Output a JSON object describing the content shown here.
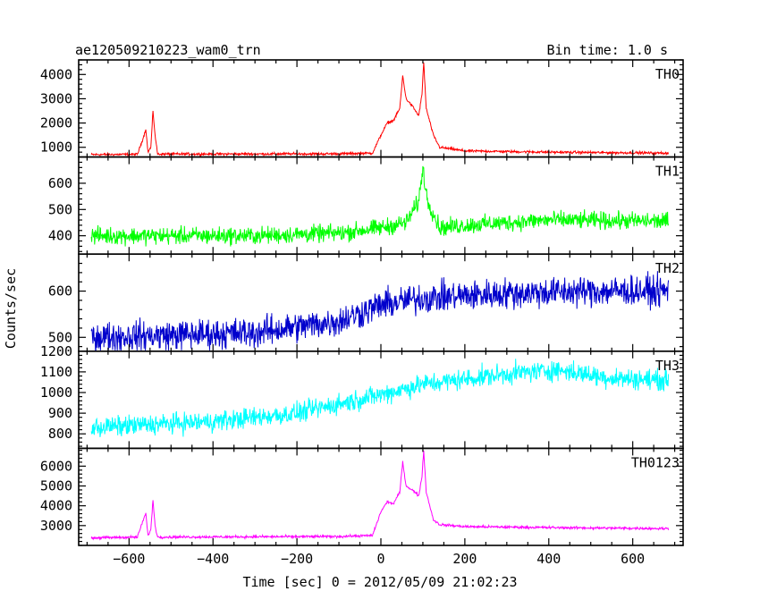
{
  "header": {
    "left": "ae120509210223_wam0_trn",
    "right": "Bin time: 1.0 s"
  },
  "chart_data": {
    "type": "line",
    "title": "ae120509210223_wam0_trn",
    "xlabel": "Time [sec] 0 = 2012/05/09 21:02:23",
    "ylabel": "Counts/sec",
    "xlim": [
      -720,
      720
    ],
    "x_ticks": [
      -600,
      -400,
      -200,
      0,
      200,
      400,
      600
    ],
    "x_tick_labels": [
      "−600",
      "−400",
      "−200",
      "0",
      "200",
      "400",
      "600"
    ],
    "x_range": [
      -690,
      685
    ],
    "panels": [
      {
        "name": "TH0",
        "color": "#ff0000",
        "ylim": [
          600,
          4600
        ],
        "y_ticks": [
          1000,
          2000,
          3000,
          4000
        ],
        "y_tick_labels": [
          "1000",
          "2000",
          "3000",
          "4000"
        ],
        "noise": 45,
        "profile": [
          [
            -690,
            700
          ],
          [
            -580,
            710
          ],
          [
            -566,
            1400
          ],
          [
            -560,
            1750
          ],
          [
            -555,
            800
          ],
          [
            -548,
            1000
          ],
          [
            -543,
            2500
          ],
          [
            -538,
            1500
          ],
          [
            -532,
            720
          ],
          [
            -100,
            730
          ],
          [
            -20,
            760
          ],
          [
            0,
            1500
          ],
          [
            15,
            2000
          ],
          [
            30,
            2100
          ],
          [
            45,
            2600
          ],
          [
            52,
            3950
          ],
          [
            60,
            3000
          ],
          [
            75,
            2700
          ],
          [
            90,
            2300
          ],
          [
            98,
            3200
          ],
          [
            102,
            4500
          ],
          [
            108,
            2600
          ],
          [
            125,
            1500
          ],
          [
            140,
            1000
          ],
          [
            200,
            850
          ],
          [
            400,
            800
          ],
          [
            685,
            760
          ]
        ]
      },
      {
        "name": "TH1",
        "color": "#00ff00",
        "ylim": [
          330,
          700
        ],
        "y_ticks": [
          400,
          500,
          600
        ],
        "y_tick_labels": [
          "400",
          "500",
          "600"
        ],
        "noise": 28,
        "profile": [
          [
            -690,
            400
          ],
          [
            -300,
            400
          ],
          [
            -100,
            410
          ],
          [
            0,
            430
          ],
          [
            60,
            450
          ],
          [
            90,
            530
          ],
          [
            100,
            660
          ],
          [
            110,
            540
          ],
          [
            140,
            430
          ],
          [
            200,
            440
          ],
          [
            400,
            460
          ],
          [
            685,
            455
          ]
        ]
      },
      {
        "name": "TH2",
        "color": "#0000cc",
        "ylim": [
          470,
          680
        ],
        "y_ticks": [
          500,
          600
        ],
        "y_tick_labels": [
          "500",
          "600"
        ],
        "noise": 28,
        "profile": [
          [
            -690,
            500
          ],
          [
            -300,
            510
          ],
          [
            -100,
            535
          ],
          [
            0,
            570
          ],
          [
            100,
            585
          ],
          [
            300,
            595
          ],
          [
            500,
            600
          ],
          [
            685,
            600
          ]
        ]
      },
      {
        "name": "TH3",
        "color": "#00ffff",
        "ylim": [
          730,
          1200
        ],
        "y_ticks": [
          800,
          900,
          1000,
          1100,
          1200
        ],
        "y_tick_labels": [
          "800",
          "900",
          "1000",
          "1100",
          "1200"
        ],
        "noise": 42,
        "profile": [
          [
            -690,
            830
          ],
          [
            -400,
            860
          ],
          [
            -200,
            900
          ],
          [
            0,
            990
          ],
          [
            100,
            1040
          ],
          [
            300,
            1090
          ],
          [
            420,
            1110
          ],
          [
            550,
            1070
          ],
          [
            685,
            1060
          ]
        ]
      },
      {
        "name": "TH0123",
        "color": "#ff00ff",
        "ylim": [
          2000,
          6900
        ],
        "y_ticks": [
          3000,
          4000,
          5000,
          6000
        ],
        "y_tick_labels": [
          "3000",
          "4000",
          "5000",
          "6000"
        ],
        "noise": 55,
        "profile": [
          [
            -690,
            2380
          ],
          [
            -580,
            2420
          ],
          [
            -566,
            3300
          ],
          [
            -560,
            3600
          ],
          [
            -555,
            2500
          ],
          [
            -548,
            2800
          ],
          [
            -543,
            4300
          ],
          [
            -538,
            3000
          ],
          [
            -532,
            2420
          ],
          [
            -100,
            2450
          ],
          [
            -20,
            2500
          ],
          [
            0,
            3700
          ],
          [
            15,
            4200
          ],
          [
            30,
            4100
          ],
          [
            45,
            4700
          ],
          [
            52,
            6200
          ],
          [
            60,
            5000
          ],
          [
            75,
            4800
          ],
          [
            90,
            4500
          ],
          [
            98,
            5500
          ],
          [
            102,
            6800
          ],
          [
            108,
            4700
          ],
          [
            125,
            3300
          ],
          [
            140,
            3050
          ],
          [
            200,
            2950
          ],
          [
            400,
            2900
          ],
          [
            685,
            2850
          ]
        ]
      }
    ]
  }
}
